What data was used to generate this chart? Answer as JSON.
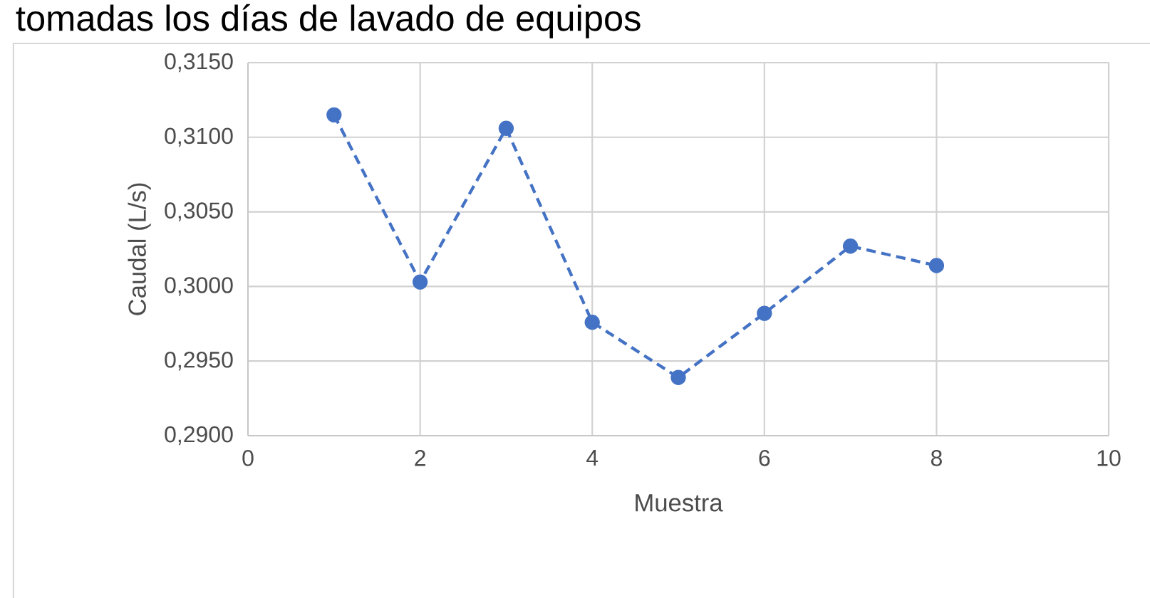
{
  "chart_data": {
    "type": "line",
    "title": "tomadas los días de lavado de equipos",
    "xlabel": "Muestra",
    "ylabel": "Caudal (L/s)",
    "x": [
      1,
      2,
      3,
      4,
      5,
      6,
      7,
      8
    ],
    "series": [
      {
        "color": "#4472c4",
        "values": [
          0.3115,
          0.3003,
          0.3106,
          0.2976,
          0.2939,
          0.2982,
          0.3027,
          0.3014
        ]
      }
    ],
    "xlim": [
      0,
      10
    ],
    "xticks": [
      0,
      2,
      4,
      6,
      8,
      10
    ],
    "ylim": [
      0.29,
      0.315
    ],
    "yticks": [
      {
        "value": 0.29,
        "label": "0,2900"
      },
      {
        "value": 0.295,
        "label": "0,2950"
      },
      {
        "value": 0.3,
        "label": "0,3000"
      },
      {
        "value": 0.305,
        "label": "0,3050"
      },
      {
        "value": 0.31,
        "label": "0,3100"
      },
      {
        "value": 0.315,
        "label": "0,3150"
      }
    ],
    "grid": true,
    "marker": "circle",
    "line_style": "dashed"
  }
}
